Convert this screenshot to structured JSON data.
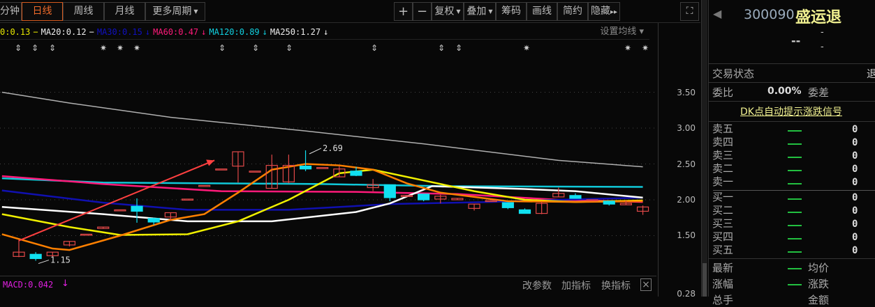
{
  "toolbar": {
    "left_tabs": [
      {
        "label": "分钟"
      },
      {
        "label": "日线",
        "active": true
      },
      {
        "label": "周线"
      },
      {
        "label": "月线"
      },
      {
        "label": "更多周期"
      }
    ],
    "right_buttons": [
      {
        "label": "+"
      },
      {
        "label": "−"
      },
      {
        "label": "复权"
      },
      {
        "label": "叠加"
      },
      {
        "label": "筹码"
      },
      {
        "label": "画线"
      },
      {
        "label": "简约"
      },
      {
        "label": "隐藏"
      }
    ],
    "hide_arrows": "▸▸",
    "fullscreen": "⛶"
  },
  "ma_legend": {
    "items": [
      {
        "text": "0:0.13",
        "color": "#e8e800"
      },
      {
        "text": "−",
        "color": "#e8e800"
      },
      {
        "text": "MA20:0.12",
        "color": "#eeeeee"
      },
      {
        "text": "−",
        "color": "#eeeeee"
      },
      {
        "text": "MA30:0.15",
        "color": "#1010c0"
      },
      {
        "text": "↓",
        "color": "#1010c0"
      },
      {
        "text": "MA60:0.47",
        "color": "#ff1a7a"
      },
      {
        "text": "↓",
        "color": "#ff1a7a"
      },
      {
        "text": "MA120:0.89",
        "color": "#10d0e0"
      },
      {
        "text": "↓",
        "color": "#10d0e0"
      },
      {
        "text": "MA250:1.27",
        "color": "#eeeeee"
      },
      {
        "text": "↓",
        "color": "#eeeeee"
      }
    ],
    "settings": "设置均线 ▾"
  },
  "signals": [
    "⇕",
    "⇕",
    "⇕",
    "✷",
    "✷",
    "✷",
    "⇕",
    "⇕",
    "⇕",
    "⇕",
    "⇕",
    "⇕",
    "✷",
    "✷",
    "✷"
  ],
  "price_axis": [
    "3.50",
    "3.00",
    "2.50",
    "2.00",
    "1.50"
  ],
  "chart_data": {
    "type": "candlestick",
    "ylim": [
      1.1,
      3.9
    ],
    "colors": {
      "up": "#e04848",
      "down": "#10e0f0",
      "ma5": "#ff8000",
      "ma10": "#f0f000",
      "ma20": "#ffffff",
      "ma30": "#1010b0",
      "ma60": "#ff1a7a",
      "ma120": "#10c8d8",
      "ma250": "#b0b0b0"
    },
    "candles": [
      [
        1.21,
        1.27,
        1.44,
        1.2
      ],
      [
        1.24,
        1.18,
        1.27,
        1.15
      ],
      [
        1.22,
        1.27,
        1.27,
        1.2
      ],
      [
        1.37,
        1.42,
        1.42,
        1.35
      ],
      [
        1.52,
        1.52,
        1.52,
        1.52
      ],
      [
        1.6,
        1.62,
        1.62,
        1.6
      ],
      [
        1.86,
        1.86,
        1.86,
        1.86
      ],
      [
        1.91,
        1.84,
        2.02,
        1.68
      ],
      [
        1.74,
        1.69,
        1.75,
        1.65
      ],
      [
        1.76,
        1.82,
        1.82,
        1.72
      ],
      [
        2.01,
        2.01,
        2.01,
        2.01
      ],
      [
        2.2,
        2.2,
        2.2,
        2.2
      ],
      [
        2.43,
        2.43,
        2.43,
        2.43
      ],
      [
        2.47,
        2.67,
        2.67,
        2.24
      ],
      [
        2.4,
        2.4,
        2.4,
        2.4
      ],
      [
        2.16,
        2.48,
        2.63,
        2.16
      ],
      [
        2.25,
        2.48,
        2.63,
        2.23
      ],
      [
        2.47,
        2.43,
        2.69,
        2.4
      ],
      [
        2.45,
        2.45,
        2.45,
        2.45
      ],
      [
        2.32,
        2.43,
        2.47,
        2.32
      ],
      [
        2.4,
        2.34,
        2.46,
        2.33
      ],
      [
        2.17,
        2.21,
        2.29,
        2.12
      ],
      [
        2.21,
        2.03,
        2.21,
        1.98
      ],
      [
        2.06,
        2.06,
        2.06,
        2.06
      ],
      [
        2.08,
        2.0,
        2.08,
        1.98
      ],
      [
        2.01,
        2.05,
        2.07,
        1.95
      ],
      [
        2.0,
        2.02,
        2.02,
        2.0
      ],
      [
        1.88,
        1.94,
        1.94,
        1.85
      ],
      [
        1.99,
        1.99,
        1.99,
        1.99
      ],
      [
        1.96,
        1.89,
        1.96,
        1.87
      ],
      [
        1.86,
        1.81,
        1.88,
        1.81
      ],
      [
        1.81,
        1.95,
        1.97,
        1.8
      ],
      [
        2.04,
        2.09,
        2.17,
        2.04
      ],
      [
        2.06,
        2.02,
        2.09,
        2.02
      ],
      [
        2.0,
        2.0,
        2.0,
        2.0
      ],
      [
        1.98,
        1.94,
        1.98,
        1.92
      ],
      [
        1.93,
        1.95,
        1.99,
        1.93
      ],
      [
        1.84,
        1.9,
        1.92,
        1.79
      ]
    ],
    "ma_lines": {
      "ma250": [
        [
          -1,
          3.5
        ],
        [
          3,
          3.35
        ],
        [
          9,
          3.15
        ],
        [
          17,
          2.96
        ],
        [
          24,
          2.78
        ],
        [
          32,
          2.55
        ],
        [
          37,
          2.46
        ]
      ],
      "ma120": [
        [
          -1,
          2.3
        ],
        [
          5,
          2.24
        ],
        [
          18,
          2.22
        ],
        [
          25,
          2.19
        ],
        [
          37,
          2.18
        ]
      ],
      "ma60": [
        [
          -1,
          2.33
        ],
        [
          5,
          2.22
        ],
        [
          12,
          2.12
        ],
        [
          20,
          2.11
        ],
        [
          26,
          2.08
        ],
        [
          32,
          2.0
        ],
        [
          37,
          1.97
        ]
      ],
      "ma30": [
        [
          -1,
          2.13
        ],
        [
          5,
          1.96
        ],
        [
          10,
          1.86
        ],
        [
          16,
          1.86
        ],
        [
          22,
          1.94
        ],
        [
          28,
          1.97
        ],
        [
          32,
          2.0
        ],
        [
          37,
          2.03
        ]
      ],
      "ma20": [
        [
          -1,
          1.9
        ],
        [
          5,
          1.8
        ],
        [
          10,
          1.7
        ],
        [
          15,
          1.7
        ],
        [
          20,
          1.83
        ],
        [
          22,
          1.95
        ],
        [
          24.5,
          2.19
        ],
        [
          30,
          2.15
        ],
        [
          33,
          2.12
        ],
        [
          37,
          2.03
        ]
      ],
      "ma10": [
        [
          -1,
          1.8
        ],
        [
          3,
          1.62
        ],
        [
          6,
          1.51
        ],
        [
          10,
          1.52
        ],
        [
          13,
          1.7
        ],
        [
          16,
          2.0
        ],
        [
          19,
          2.37
        ],
        [
          21,
          2.42
        ],
        [
          24,
          2.27
        ],
        [
          27,
          2.12
        ],
        [
          30,
          2.0
        ],
        [
          33,
          1.97
        ],
        [
          37,
          1.99
        ]
      ],
      "ma5": [
        [
          -1,
          1.52
        ],
        [
          2,
          1.32
        ],
        [
          3,
          1.3
        ],
        [
          6,
          1.5
        ],
        [
          9,
          1.72
        ],
        [
          11,
          1.8
        ],
        [
          13,
          2.1
        ],
        [
          15,
          2.42
        ],
        [
          17,
          2.5
        ],
        [
          19,
          2.48
        ],
        [
          21,
          2.42
        ],
        [
          23,
          2.23
        ],
        [
          25,
          2.1
        ],
        [
          29,
          1.98
        ],
        [
          33,
          1.97
        ],
        [
          37,
          1.98
        ]
      ]
    },
    "annotations": {
      "high": "2.69",
      "low": "1.15"
    },
    "trend_arrow": {
      "from": [
        0,
        1.43
      ],
      "to": [
        11.6,
        2.55
      ],
      "color": "#ff4040"
    }
  },
  "quote": {
    "code": "300090",
    "name": "盛运退",
    "price": "--",
    "change_top": "-",
    "change_bottom": "-",
    "trade_status_label": "交易状态",
    "trade_status_value": "退",
    "weibi_label": "委比",
    "weibi_value": "0.00%",
    "weicha_label": "委差",
    "dk_link": "DK点自动提示涨跌信号",
    "sell": [
      {
        "label": "卖五",
        "price": "—",
        "vol": "0"
      },
      {
        "label": "卖四",
        "price": "—",
        "vol": "0"
      },
      {
        "label": "卖三",
        "price": "—",
        "vol": "0"
      },
      {
        "label": "卖二",
        "price": "—",
        "vol": "0"
      },
      {
        "label": "卖一",
        "price": "—",
        "vol": "0"
      }
    ],
    "buy": [
      {
        "label": "买一",
        "price": "—",
        "vol": "0"
      },
      {
        "label": "买二",
        "price": "—",
        "vol": "0"
      },
      {
        "label": "买三",
        "price": "—",
        "vol": "0"
      },
      {
        "label": "买四",
        "price": "—",
        "vol": "0"
      },
      {
        "label": "买五",
        "price": "—",
        "vol": "0"
      }
    ],
    "stats": [
      {
        "label": "最新",
        "value": "—",
        "label2": "均价"
      },
      {
        "label": "涨幅",
        "value": "—",
        "label2": "涨跌"
      },
      {
        "label": "总手",
        "value": "",
        "label2": "金额"
      }
    ]
  },
  "indicator": {
    "macd": "MACD:0.042",
    "macd_arrow": "↓",
    "buttons": [
      "改参数",
      "加指标",
      "换指标"
    ],
    "close": "×",
    "axis_top": "0.28"
  }
}
